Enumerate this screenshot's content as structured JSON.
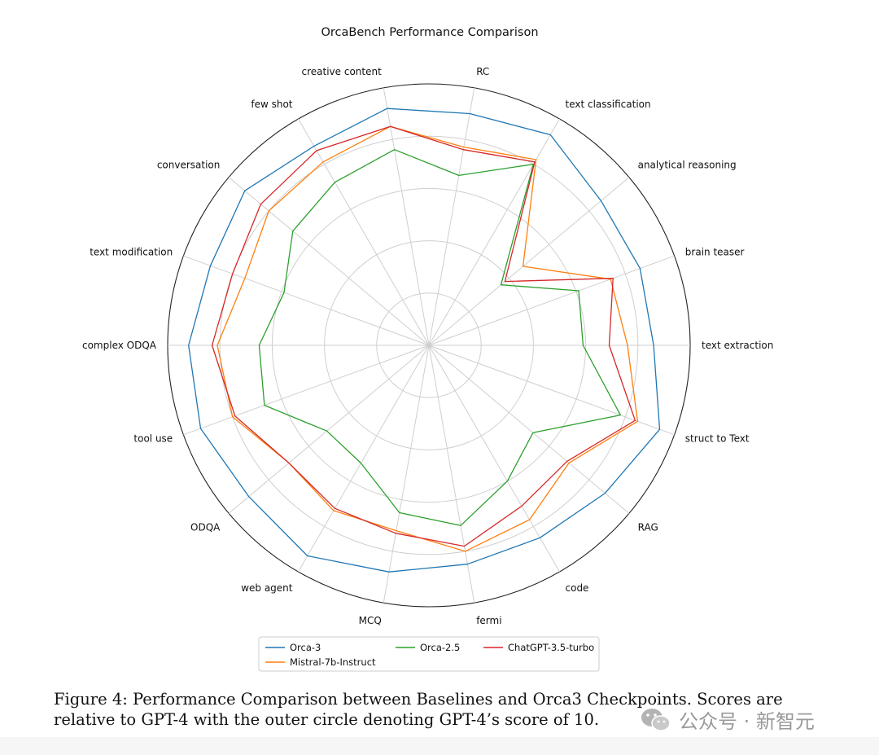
{
  "chart_data": {
    "type": "radar",
    "title": "OrcaBench Performance Comparison",
    "range": [
      0,
      10
    ],
    "gridlines": [
      2,
      4,
      6,
      8,
      10
    ],
    "categories": [
      "text extraction",
      "brain teaser",
      "analytical reasoning",
      "text classification",
      "RC",
      "creative content",
      "few shot",
      "conversation",
      "text modification",
      "complex ODQA",
      "tool use",
      "ODQA",
      "web agent",
      "MCQ",
      "fermi",
      "code",
      "RAG",
      "struct to Text"
    ],
    "series": [
      {
        "name": "Orca-3",
        "color": "#1f77b4",
        "values": [
          8.6,
          8.6,
          8.6,
          9.3,
          9.0,
          9.2,
          8.8,
          9.2,
          8.9,
          9.2,
          9.3,
          9.0,
          9.3,
          8.8,
          8.5,
          8.5,
          8.8,
          9.4
        ]
      },
      {
        "name": "Mistral-7b-Instruct",
        "color": "#ff7f0e",
        "values": [
          7.6,
          7.4,
          4.7,
          8.2,
          7.7,
          8.5,
          8.1,
          8.0,
          7.5,
          8.1,
          8.0,
          7.0,
          7.3,
          7.2,
          8.0,
          7.7,
          7.0,
          8.5
        ]
      },
      {
        "name": "Orca-2.5",
        "color": "#2ca02c",
        "values": [
          5.9,
          6.1,
          3.6,
          8.0,
          6.6,
          7.6,
          7.2,
          6.8,
          5.9,
          6.5,
          6.7,
          5.1,
          5.2,
          6.5,
          7.0,
          6.0,
          5.2,
          7.8
        ]
      },
      {
        "name": "ChatGPT-3.5-turbo",
        "color": "#d62728",
        "values": [
          6.9,
          7.5,
          3.8,
          8.1,
          7.6,
          8.5,
          8.6,
          8.4,
          8.0,
          8.3,
          7.9,
          7.0,
          7.2,
          7.3,
          7.8,
          7.1,
          6.9,
          8.4
        ]
      }
    ],
    "legend_placement": "bottom-center"
  },
  "caption": {
    "line1": "Figure 4: Performance Comparison between Baselines and Orca3 Checkpoints. Scores are",
    "line2": "relative to GPT-4 with the outer circle denoting GPT-4’s score of 10."
  },
  "watermark": {
    "text": "公众号 · 新智元",
    "icon": "wechat-icon"
  }
}
